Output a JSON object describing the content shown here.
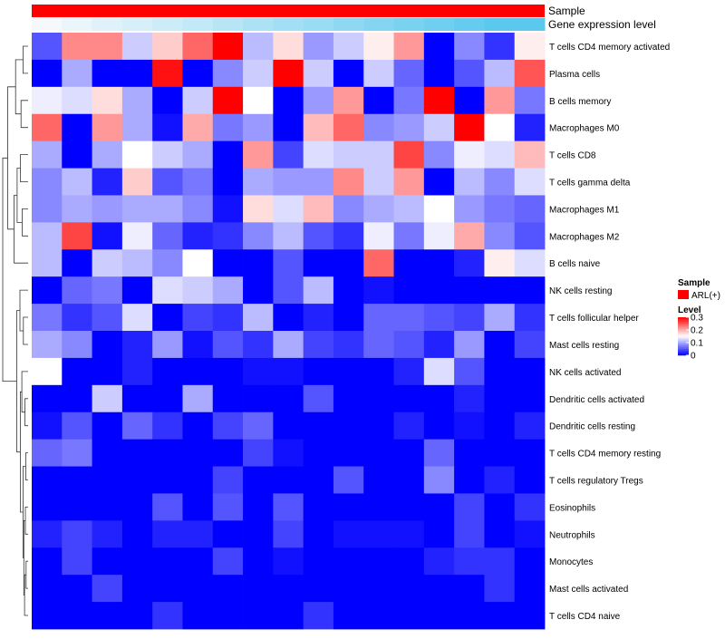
{
  "chart_data": {
    "type": "heatmap",
    "annotation_rows": [
      {
        "name": "Sample",
        "label": "Sample"
      },
      {
        "name": "Gene expression level",
        "label": "Gene expression level"
      }
    ],
    "rows": [
      "T cells CD4 memory activated",
      "Plasma cells",
      "B cells memory",
      "Macrophages M0",
      "T cells CD8",
      "T cells gamma delta",
      "Macrophages M1",
      "Macrophages M2",
      "B cells naive",
      "NK cells resting",
      "T cells follicular helper",
      "Mast cells resting",
      "NK cells activated",
      "Dendritic cells activated",
      "Dendritic cells resting",
      "T cells CD4 memory resting",
      "T cells regulatory  Tregs",
      "Eosinophils",
      "Neutrophils",
      "Monocytes",
      "Mast cells activated",
      "T cells CD4 naive"
    ],
    "values": [
      [
        0.05,
        0.22,
        0.22,
        0.12,
        0.18,
        0.24,
        0.3,
        0.11,
        0.17,
        0.09,
        0.12,
        0.16,
        0.21,
        0.0,
        0.08,
        0.03,
        0.16
      ],
      [
        0.0,
        0.1,
        0.0,
        0.0,
        0.29,
        0.0,
        0.08,
        0.12,
        0.3,
        0.12,
        0.0,
        0.12,
        0.06,
        0.0,
        0.05,
        0.11,
        0.25
      ],
      [
        0.14,
        0.13,
        0.17,
        0.1,
        0.0,
        0.12,
        0.3,
        0.15,
        0.0,
        0.09,
        0.21,
        0.0,
        0.07,
        0.3,
        0.0,
        0.21,
        0.07
      ],
      [
        0.24,
        0.0,
        0.21,
        0.1,
        0.01,
        0.2,
        0.07,
        0.09,
        0.0,
        0.19,
        0.24,
        0.08,
        0.09,
        0.12,
        0.3,
        0.15,
        0.02
      ],
      [
        0.1,
        0.0,
        0.1,
        0.15,
        0.12,
        0.1,
        0.0,
        0.21,
        0.04,
        0.13,
        0.12,
        0.12,
        0.26,
        0.08,
        0.14,
        0.13,
        0.19
      ],
      [
        0.08,
        0.11,
        0.02,
        0.18,
        0.05,
        0.07,
        0.0,
        0.1,
        0.09,
        0.09,
        0.22,
        0.12,
        0.21,
        0.0,
        0.11,
        0.08,
        0.13
      ],
      [
        0.08,
        0.1,
        0.09,
        0.1,
        0.1,
        0.08,
        0.01,
        0.17,
        0.13,
        0.19,
        0.08,
        0.1,
        0.11,
        0.15,
        0.09,
        0.07,
        0.06
      ],
      [
        0.11,
        0.26,
        0.01,
        0.14,
        0.06,
        0.02,
        0.03,
        0.08,
        0.11,
        0.05,
        0.03,
        0.14,
        0.07,
        0.14,
        0.2,
        0.08,
        0.05
      ],
      [
        0.11,
        0.0,
        0.12,
        0.11,
        0.08,
        0.15,
        0.0,
        0.0,
        0.05,
        0.0,
        0.0,
        0.24,
        0.0,
        0.0,
        0.02,
        0.16,
        0.13
      ],
      [
        0.0,
        0.06,
        0.07,
        0.0,
        0.13,
        0.12,
        0.1,
        0.0,
        0.05,
        0.11,
        0.0,
        0.01,
        0.0,
        0.0,
        0.0,
        0.0,
        0.0
      ],
      [
        0.07,
        0.03,
        0.05,
        0.13,
        0.0,
        0.04,
        0.03,
        0.11,
        0.0,
        0.02,
        0.0,
        0.06,
        0.06,
        0.05,
        0.04,
        0.1,
        0.03
      ],
      [
        0.1,
        0.08,
        0.0,
        0.02,
        0.09,
        0.01,
        0.05,
        0.03,
        0.1,
        0.04,
        0.03,
        0.06,
        0.05,
        0.02,
        0.09,
        0.0,
        0.04
      ],
      [
        0.15,
        0.0,
        0.0,
        0.02,
        0.0,
        0.0,
        0.0,
        0.01,
        0.01,
        0.0,
        0.0,
        0.0,
        0.02,
        0.13,
        0.05,
        0.0,
        0.0
      ],
      [
        0.0,
        0.0,
        0.12,
        0.0,
        0.0,
        0.1,
        0.0,
        0.0,
        0.0,
        0.05,
        0.0,
        0.0,
        0.0,
        0.0,
        0.02,
        0.0,
        0.0
      ],
      [
        0.01,
        0.05,
        0.0,
        0.06,
        0.03,
        0.0,
        0.04,
        0.06,
        0.0,
        0.0,
        0.0,
        0.0,
        0.02,
        0.0,
        0.01,
        0.0,
        0.02
      ],
      [
        0.06,
        0.07,
        0.0,
        0.0,
        0.0,
        0.0,
        0.0,
        0.04,
        0.01,
        0.0,
        0.0,
        0.0,
        0.0,
        0.06,
        0.0,
        0.0,
        0.0
      ],
      [
        0.0,
        0.0,
        0.0,
        0.0,
        0.0,
        0.0,
        0.04,
        0.0,
        0.0,
        0.0,
        0.05,
        0.0,
        0.0,
        0.08,
        0.0,
        0.02,
        0.0
      ],
      [
        0.0,
        0.0,
        0.0,
        0.0,
        0.05,
        0.0,
        0.05,
        0.0,
        0.05,
        0.0,
        0.0,
        0.0,
        0.0,
        0.0,
        0.04,
        0.0,
        0.03
      ],
      [
        0.02,
        0.04,
        0.02,
        0.0,
        0.02,
        0.02,
        0.0,
        0.0,
        0.04,
        0.0,
        0.01,
        0.01,
        0.01,
        0.0,
        0.04,
        0.0,
        0.01
      ],
      [
        0.0,
        0.04,
        0.0,
        0.0,
        0.0,
        0.0,
        0.04,
        0.0,
        0.01,
        0.0,
        0.0,
        0.0,
        0.0,
        0.02,
        0.03,
        0.03,
        0.0
      ],
      [
        0.0,
        0.0,
        0.04,
        0.0,
        0.0,
        0.0,
        0.0,
        0.0,
        0.0,
        0.0,
        0.0,
        0.0,
        0.0,
        0.0,
        0.0,
        0.03,
        0.0
      ],
      [
        0.0,
        0.0,
        0.0,
        0.0,
        0.03,
        0.0,
        0.0,
        0.0,
        0.0,
        0.03,
        0.0,
        0.0,
        0.0,
        0.0,
        0.0,
        0.0,
        0.0
      ]
    ],
    "sample_annotation": {
      "name": "ARL(+)",
      "color": "#ff0000"
    },
    "expression_gradient": {
      "low": "#f5f9fb",
      "high": "#5bc8ee"
    },
    "legend": {
      "sample_title": "Sample",
      "sample_item": "ARL(+)",
      "level_title": "Level",
      "ticks": [
        {
          "value": 0.3,
          "label": "0.3"
        },
        {
          "value": 0.2,
          "label": "0.2"
        },
        {
          "value": 0.1,
          "label": "0.1"
        },
        {
          "value": 0.0,
          "label": "0"
        }
      ],
      "range": [
        0,
        0.3
      ],
      "placement": "right"
    },
    "color_scale": {
      "low": "#0000ff",
      "mid": "#ffffff",
      "high": "#ff0000",
      "mid_value": 0.15
    },
    "row_dendrogram": true
  }
}
